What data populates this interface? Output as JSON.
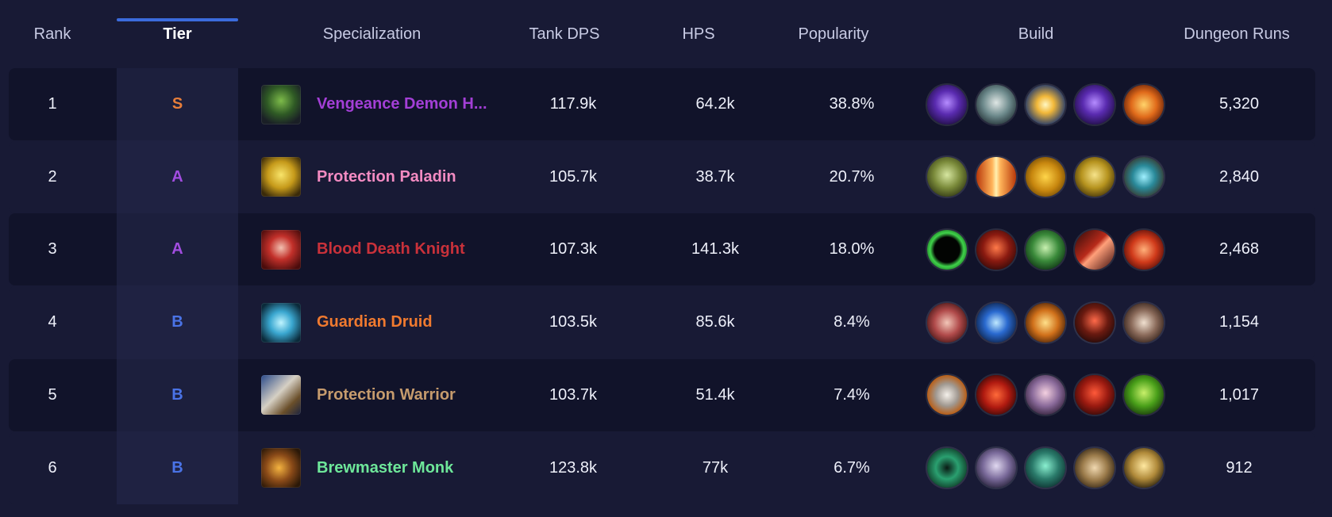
{
  "header": {
    "rank": "Rank",
    "tier": "Tier",
    "specialization": "Specialization",
    "tank_dps": "Tank DPS",
    "hps": "HPS",
    "popularity": "Popularity",
    "build": "Build",
    "dungeon_runs": "Dungeon Runs"
  },
  "colors": {
    "tier_S": "#e87e3a",
    "tier_A": "#a24de0",
    "tier_B": "#4a73e6",
    "accent": "#3b6bdc"
  },
  "rows": [
    {
      "rank": "1",
      "tier": "S",
      "spec": "Vengeance Demon H...",
      "spec_color": "#a33fd6",
      "spec_icon": "vengeance-demon-hunter-icon",
      "tank_dps": "117.9k",
      "hps": "64.2k",
      "popularity": "38.8%",
      "runs": "5,320",
      "build": [
        "void-orb-icon",
        "skull-icon",
        "spark-burst-icon",
        "void-orb-icon",
        "flame-swirl-icon"
      ]
    },
    {
      "rank": "2",
      "tier": "A",
      "spec": "Protection Paladin",
      "spec_color": "#f38bc2",
      "spec_icon": "protection-paladin-icon",
      "tank_dps": "105.7k",
      "hps": "38.7k",
      "popularity": "20.7%",
      "runs": "2,840",
      "build": [
        "green-skull-icon",
        "holy-light-icon",
        "golden-statue-icon",
        "golden-helm-icon",
        "gear-orb-icon"
      ]
    },
    {
      "rank": "3",
      "tier": "A",
      "spec": "Blood Death Knight",
      "spec_color": "#c9313a",
      "spec_icon": "blood-death-knight-icon",
      "tank_dps": "107.3k",
      "hps": "141.3k",
      "popularity": "18.0%",
      "runs": "2,468",
      "build": [
        "green-portal-icon",
        "blood-skull-icon",
        "ghoul-icon",
        "blood-claw-icon",
        "blood-flame-icon"
      ]
    },
    {
      "rank": "4",
      "tier": "B",
      "spec": "Guardian Druid",
      "spec_color": "#f07a2f",
      "spec_icon": "guardian-druid-icon",
      "tank_dps": "103.5k",
      "hps": "85.6k",
      "popularity": "8.4%",
      "runs": "1,154",
      "build": [
        "flesh-tear-icon",
        "blue-swirl-icon",
        "fire-strike-icon",
        "bear-icon",
        "claw-icon"
      ]
    },
    {
      "rank": "5",
      "tier": "B",
      "spec": "Protection Warrior",
      "spec_color": "#c69b6d",
      "spec_icon": "protection-warrior-icon",
      "tank_dps": "103.7k",
      "hps": "51.4k",
      "popularity": "7.4%",
      "runs": "1,017",
      "build": [
        "shield-icon",
        "red-slash-icon",
        "banshee-icon",
        "red-demon-icon",
        "orc-face-icon"
      ]
    },
    {
      "rank": "6",
      "tier": "B",
      "spec": "Brewmaster Monk",
      "spec_color": "#6ee79a",
      "spec_icon": "brewmaster-monk-icon",
      "tank_dps": "123.8k",
      "hps": "77k",
      "popularity": "6.7%",
      "runs": "912",
      "build": [
        "jade-vortex-icon",
        "spirit-monk-icon",
        "jade-serpent-icon",
        "brew-keg-icon",
        "monk-fist-icon"
      ]
    }
  ]
}
